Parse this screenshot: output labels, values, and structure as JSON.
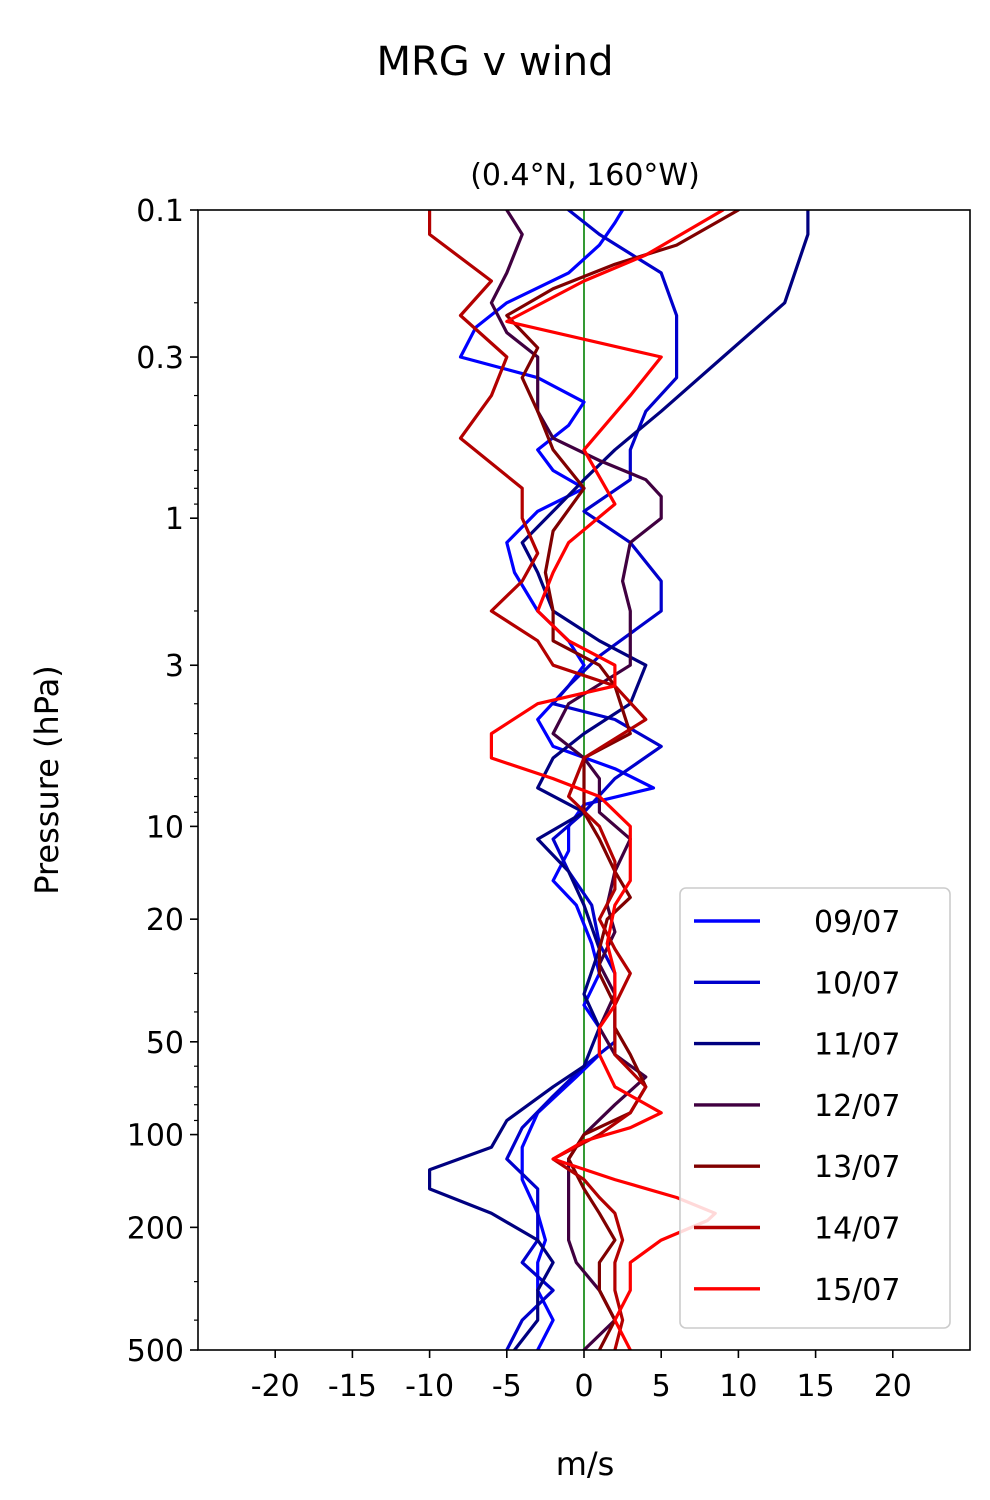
{
  "chart_data": {
    "type": "line",
    "title": "MRG v wind",
    "subtitle": "(0.4°N, 160°W)",
    "xlabel": "m/s",
    "ylabel": "Pressure (hPa)",
    "xlim": [
      -25,
      25
    ],
    "ylim": [
      500,
      0.1
    ],
    "yscale": "log",
    "y_inverted": true,
    "x_ticks": [
      -20,
      -15,
      -10,
      -5,
      0,
      5,
      10,
      15,
      20
    ],
    "x_tick_labels": [
      "-20",
      "-15",
      "-10",
      "-5",
      "0",
      "5",
      "10",
      "15",
      "20"
    ],
    "y_ticks": [
      0.1,
      0.3,
      1,
      3,
      10,
      20,
      50,
      100,
      200,
      500
    ],
    "y_tick_labels": [
      "0.1",
      "0.3",
      "1",
      "3",
      "10",
      "20",
      "50",
      "100",
      "200",
      "500"
    ],
    "reference_line": {
      "x": 0,
      "color": "#008000"
    },
    "legend_position": "lower-right",
    "series": [
      {
        "name": "09/07",
        "color": "#0000ff",
        "points": [
          [
            -3,
            500
          ],
          [
            -2,
            400
          ],
          [
            -3,
            320
          ],
          [
            -3,
            260
          ],
          [
            -2.5,
            220
          ],
          [
            -3,
            180
          ],
          [
            -4,
            140
          ],
          [
            -4,
            110
          ],
          [
            -3,
            85
          ],
          [
            -0.5,
            65
          ],
          [
            1,
            55
          ],
          [
            1,
            45
          ],
          [
            0,
            38
          ],
          [
            1,
            30
          ],
          [
            0.5,
            24
          ],
          [
            -0.5,
            18
          ],
          [
            -2,
            15
          ],
          [
            -1,
            12
          ],
          [
            -1,
            10
          ],
          [
            0,
            8.5
          ],
          [
            4.5,
            7.5
          ],
          [
            2,
            6.5
          ],
          [
            -2,
            5.5
          ],
          [
            -3,
            4.5
          ],
          [
            -1,
            3.5
          ],
          [
            0,
            3
          ],
          [
            -1,
            2.5
          ],
          [
            -3,
            2
          ],
          [
            -4.5,
            1.5
          ],
          [
            -5,
            1.2
          ],
          [
            -3,
            0.95
          ],
          [
            0,
            0.8
          ],
          [
            -2,
            0.7
          ],
          [
            -3,
            0.6
          ],
          [
            -1,
            0.5
          ],
          [
            0,
            0.42
          ],
          [
            -3,
            0.35
          ],
          [
            -8,
            0.3
          ],
          [
            -7,
            0.24
          ],
          [
            -5,
            0.2
          ],
          [
            -1,
            0.16
          ],
          [
            1,
            0.13
          ],
          [
            2,
            0.11
          ],
          [
            2.5,
            0.1
          ]
        ]
      },
      {
        "name": "10/07",
        "color": "#0000cc",
        "points": [
          [
            -5,
            500
          ],
          [
            -4,
            400
          ],
          [
            -2,
            320
          ],
          [
            -4,
            260
          ],
          [
            -3,
            220
          ],
          [
            -3,
            180
          ],
          [
            -3,
            150
          ],
          [
            -5,
            120
          ],
          [
            -4,
            95
          ],
          [
            -2,
            75
          ],
          [
            0,
            60
          ],
          [
            2,
            50
          ],
          [
            2,
            40
          ],
          [
            2,
            30
          ],
          [
            1,
            24
          ],
          [
            0.5,
            18
          ],
          [
            -1,
            14
          ],
          [
            -2,
            11
          ],
          [
            0,
            9
          ],
          [
            2,
            7
          ],
          [
            5,
            5.5
          ],
          [
            2,
            4.5
          ],
          [
            -2,
            4
          ],
          [
            -1,
            3.5
          ],
          [
            1,
            2.8
          ],
          [
            5,
            2
          ],
          [
            5,
            1.6
          ],
          [
            3,
            1.2
          ],
          [
            0,
            0.95
          ],
          [
            3,
            0.75
          ],
          [
            3,
            0.6
          ],
          [
            4,
            0.45
          ],
          [
            6,
            0.35
          ],
          [
            6,
            0.3
          ],
          [
            6,
            0.22
          ],
          [
            5,
            0.16
          ],
          [
            1,
            0.12
          ],
          [
            -1,
            0.1
          ]
        ]
      },
      {
        "name": "11/07",
        "color": "#000080",
        "points": [
          [
            -4.5,
            500
          ],
          [
            -3,
            400
          ],
          [
            -3,
            320
          ],
          [
            -2,
            260
          ],
          [
            -3,
            220
          ],
          [
            -6,
            180
          ],
          [
            -10,
            150
          ],
          [
            -10,
            130
          ],
          [
            -6,
            110
          ],
          [
            -5,
            90
          ],
          [
            -2,
            70
          ],
          [
            0,
            60
          ],
          [
            1,
            45
          ],
          [
            0,
            35
          ],
          [
            1,
            25
          ],
          [
            0,
            18
          ],
          [
            -1,
            14
          ],
          [
            -3,
            11
          ],
          [
            0,
            9
          ],
          [
            -3,
            7.5
          ],
          [
            -2,
            6
          ],
          [
            0,
            5
          ],
          [
            3,
            4
          ],
          [
            4,
            3
          ],
          [
            1,
            2.5
          ],
          [
            -2,
            2
          ],
          [
            -3,
            1.5
          ],
          [
            -4,
            1.2
          ],
          [
            -2,
            0.95
          ],
          [
            0,
            0.75
          ],
          [
            2,
            0.6
          ],
          [
            5,
            0.45
          ],
          [
            9,
            0.3
          ],
          [
            13,
            0.2
          ],
          [
            14.5,
            0.12
          ],
          [
            14.5,
            0.1
          ]
        ]
      },
      {
        "name": "12/07",
        "color": "#400040",
        "points": [
          [
            0,
            500
          ],
          [
            2,
            400
          ],
          [
            1,
            320
          ],
          [
            -0.5,
            260
          ],
          [
            -1,
            220
          ],
          [
            -1,
            180
          ],
          [
            -1,
            150
          ],
          [
            -1,
            120
          ],
          [
            0,
            100
          ],
          [
            2,
            80
          ],
          [
            4,
            65
          ],
          [
            2,
            55
          ],
          [
            1,
            45
          ],
          [
            2,
            35
          ],
          [
            1,
            28
          ],
          [
            2,
            22
          ],
          [
            1.5,
            18
          ],
          [
            2,
            14
          ],
          [
            3,
            11
          ],
          [
            1,
            9
          ],
          [
            1,
            7
          ],
          [
            0,
            6
          ],
          [
            -2,
            5
          ],
          [
            -1,
            4
          ],
          [
            3,
            3
          ],
          [
            3,
            2.5
          ],
          [
            3,
            2
          ],
          [
            2.5,
            1.6
          ],
          [
            3,
            1.2
          ],
          [
            5,
            1
          ],
          [
            5,
            0.85
          ],
          [
            4,
            0.75
          ],
          [
            1,
            0.65
          ],
          [
            -2,
            0.55
          ],
          [
            -3,
            0.45
          ],
          [
            -3,
            0.35
          ],
          [
            -3,
            0.3
          ],
          [
            -5,
            0.25
          ],
          [
            -6,
            0.2
          ],
          [
            -5,
            0.16
          ],
          [
            -4,
            0.12
          ],
          [
            -5,
            0.1
          ]
        ]
      },
      {
        "name": "13/07",
        "color": "#800000",
        "points": [
          [
            1,
            500
          ],
          [
            2,
            400
          ],
          [
            1,
            320
          ],
          [
            1,
            260
          ],
          [
            2,
            220
          ],
          [
            1,
            180
          ],
          [
            0,
            150
          ],
          [
            -1,
            120
          ],
          [
            0,
            100
          ],
          [
            3,
            85
          ],
          [
            4,
            70
          ],
          [
            3,
            55
          ],
          [
            2,
            45
          ],
          [
            2,
            38
          ],
          [
            1,
            30
          ],
          [
            1,
            25
          ],
          [
            1.5,
            20
          ],
          [
            3,
            17
          ],
          [
            2,
            14
          ],
          [
            1,
            11
          ],
          [
            0,
            9
          ],
          [
            0,
            7
          ],
          [
            0,
            6
          ],
          [
            3,
            5
          ],
          [
            2,
            3.5
          ],
          [
            1,
            3
          ],
          [
            -2,
            2.5
          ],
          [
            -2,
            2
          ],
          [
            -2.5,
            1.5
          ],
          [
            -2,
            1.1
          ],
          [
            0,
            0.8
          ],
          [
            -2,
            0.6
          ],
          [
            -3,
            0.45
          ],
          [
            -4,
            0.35
          ],
          [
            -3,
            0.28
          ],
          [
            -5,
            0.22
          ],
          [
            -2,
            0.18
          ],
          [
            2,
            0.15
          ],
          [
            6,
            0.13
          ],
          [
            10,
            0.1
          ]
        ]
      },
      {
        "name": "14/07",
        "color": "#b30000",
        "points": [
          [
            2,
            500
          ],
          [
            2.5,
            400
          ],
          [
            2,
            320
          ],
          [
            2,
            260
          ],
          [
            2.5,
            220
          ],
          [
            2,
            180
          ],
          [
            1,
            160
          ],
          [
            0,
            140
          ],
          [
            -2,
            120
          ],
          [
            1,
            100
          ],
          [
            3,
            85
          ],
          [
            4,
            70
          ],
          [
            2,
            55
          ],
          [
            2,
            45
          ],
          [
            2,
            38
          ],
          [
            3,
            30
          ],
          [
            2,
            25
          ],
          [
            1,
            20
          ],
          [
            2,
            16
          ],
          [
            2,
            13
          ],
          [
            1,
            10
          ],
          [
            -1,
            8
          ],
          [
            0,
            6
          ],
          [
            4,
            4.5
          ],
          [
            2,
            3.5
          ],
          [
            -2,
            3
          ],
          [
            -3,
            2.5
          ],
          [
            -6,
            2
          ],
          [
            -4,
            1.6
          ],
          [
            -3,
            1.3
          ],
          [
            -4,
            1
          ],
          [
            -4,
            0.8
          ],
          [
            -8,
            0.55
          ],
          [
            -6,
            0.4
          ],
          [
            -5,
            0.3
          ],
          [
            -8,
            0.22
          ],
          [
            -6,
            0.17
          ],
          [
            -10,
            0.12
          ],
          [
            -10,
            0.1
          ]
        ]
      },
      {
        "name": "15/07",
        "color": "#ff0000",
        "points": [
          [
            3,
            500
          ],
          [
            2,
            400
          ],
          [
            3,
            320
          ],
          [
            3,
            260
          ],
          [
            5,
            220
          ],
          [
            8,
            190
          ],
          [
            8.5,
            180
          ],
          [
            6,
            160
          ],
          [
            2,
            140
          ],
          [
            -2,
            120
          ],
          [
            0,
            105
          ],
          [
            3,
            95
          ],
          [
            5,
            85
          ],
          [
            2,
            70
          ],
          [
            1,
            55
          ],
          [
            1,
            45
          ],
          [
            2,
            38
          ],
          [
            2,
            30
          ],
          [
            1.5,
            24
          ],
          [
            2,
            18
          ],
          [
            3,
            15
          ],
          [
            3,
            12
          ],
          [
            3,
            10
          ],
          [
            1,
            8
          ],
          [
            -2,
            7
          ],
          [
            -6,
            6
          ],
          [
            -6,
            5
          ],
          [
            -3,
            4
          ],
          [
            2,
            3.5
          ],
          [
            2,
            3
          ],
          [
            -1,
            2.5
          ],
          [
            -3,
            2
          ],
          [
            -2,
            1.5
          ],
          [
            -1,
            1.2
          ],
          [
            2,
            0.9
          ],
          [
            0,
            0.6
          ],
          [
            3,
            0.4
          ],
          [
            5,
            0.3
          ],
          [
            -5,
            0.23
          ],
          [
            0,
            0.17
          ],
          [
            4,
            0.14
          ],
          [
            9,
            0.1
          ]
        ]
      }
    ]
  }
}
